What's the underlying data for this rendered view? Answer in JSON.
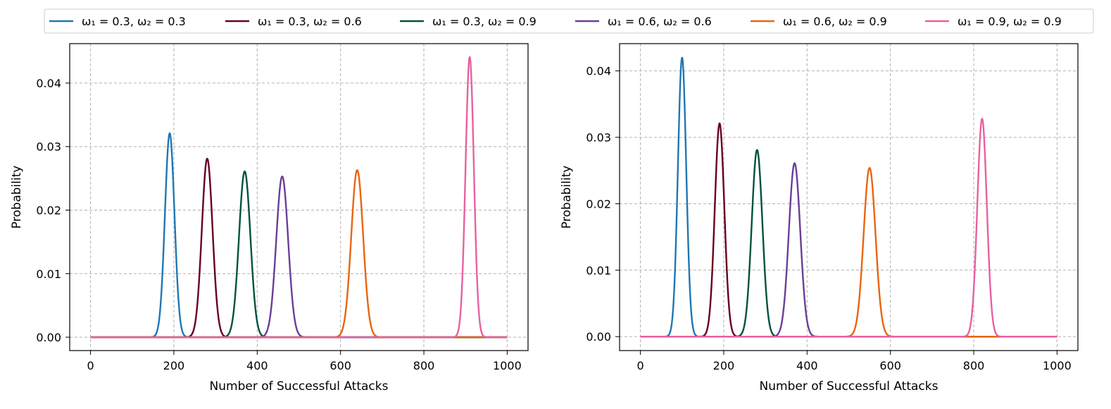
{
  "chart_data": {
    "type": "line",
    "legend": {
      "placement": "top-center",
      "entries": [
        {
          "label": "ω₁ = 0.3, ω₂ = 0.3",
          "color": "#1f77b4"
        },
        {
          "label": "ω₁ = 0.3, ω₂ = 0.6",
          "color": "#67001f"
        },
        {
          "label": "ω₁ = 0.3, ω₂ = 0.9",
          "color": "#00523f"
        },
        {
          "label": "ω₁ = 0.6, ω₂ = 0.6",
          "color": "#6a3d9a"
        },
        {
          "label": "ω₁ = 0.6, ω₂ = 0.9",
          "color": "#e8650f"
        },
        {
          "label": "ω₁ = 0.9, ω₂ = 0.9",
          "color": "#e7619f"
        }
      ]
    },
    "panels": [
      {
        "xlabel": "Number of Successful Attacks",
        "ylabel": "Probability",
        "xlim": [
          -50,
          1050
        ],
        "ylim": [
          -0.0021,
          0.0462
        ],
        "xticks": [
          0,
          200,
          400,
          600,
          800,
          1000
        ],
        "xtick_labels": [
          "0",
          "200",
          "400",
          "600",
          "800",
          "1000"
        ],
        "yticks": [
          0,
          0.01,
          0.02,
          0.03,
          0.04
        ],
        "ytick_labels": [
          "0.00",
          "0.01",
          "0.02",
          "0.03",
          "0.04"
        ],
        "grid": true,
        "series": [
          {
            "name": "ω₁ = 0.3, ω₂ = 0.3",
            "color": "#1f77b4",
            "peak_x": 190,
            "peak_y": 0.0321,
            "support": [
              150,
              230
            ]
          },
          {
            "name": "ω₁ = 0.3, ω₂ = 0.6",
            "color": "#67001f",
            "peak_x": 280,
            "peak_y": 0.0281,
            "support": [
              235,
              325
            ]
          },
          {
            "name": "ω₁ = 0.3, ω₂ = 0.9",
            "color": "#00523f",
            "peak_x": 370,
            "peak_y": 0.0261,
            "support": [
              322,
              418
            ]
          },
          {
            "name": "ω₁ = 0.6, ω₂ = 0.6",
            "color": "#6a3d9a",
            "peak_x": 460,
            "peak_y": 0.0253,
            "support": [
              410,
              510
            ]
          },
          {
            "name": "ω₁ = 0.6, ω₂ = 0.9",
            "color": "#e8650f",
            "peak_x": 640,
            "peak_y": 0.0263,
            "support": [
              590,
              690
            ]
          },
          {
            "name": "ω₁ = 0.9, ω₂ = 0.9",
            "color": "#e7619f",
            "peak_x": 910,
            "peak_y": 0.0441,
            "support": [
              875,
              945
            ]
          }
        ]
      },
      {
        "xlabel": "Number of Successful Attacks",
        "ylabel": "Probability",
        "xlim": [
          -50,
          1050
        ],
        "ylim": [
          -0.0021,
          0.0441
        ],
        "xticks": [
          0,
          200,
          400,
          600,
          800,
          1000
        ],
        "xtick_labels": [
          "0",
          "200",
          "400",
          "600",
          "800",
          "1000"
        ],
        "yticks": [
          0,
          0.01,
          0.02,
          0.03,
          0.04
        ],
        "ytick_labels": [
          "0.00",
          "0.01",
          "0.02",
          "0.03",
          "0.04"
        ],
        "grid": true,
        "series": [
          {
            "name": "ω₁ = 0.3, ω₂ = 0.3",
            "color": "#1f77b4",
            "peak_x": 100,
            "peak_y": 0.042,
            "support": [
              65,
              135
            ]
          },
          {
            "name": "ω₁ = 0.3, ω₂ = 0.6",
            "color": "#67001f",
            "peak_x": 190,
            "peak_y": 0.0321,
            "support": [
              150,
              230
            ]
          },
          {
            "name": "ω₁ = 0.3, ω₂ = 0.9",
            "color": "#00523f",
            "peak_x": 280,
            "peak_y": 0.0281,
            "support": [
              235,
              325
            ]
          },
          {
            "name": "ω₁ = 0.6, ω₂ = 0.6",
            "color": "#6a3d9a",
            "peak_x": 370,
            "peak_y": 0.0261,
            "support": [
              322,
              418
            ]
          },
          {
            "name": "ω₁ = 0.6, ω₂ = 0.9",
            "color": "#e8650f",
            "peak_x": 550,
            "peak_y": 0.0254,
            "support": [
              500,
              600
            ]
          },
          {
            "name": "ω₁ = 0.9, ω₂ = 0.9",
            "color": "#e7619f",
            "peak_x": 820,
            "peak_y": 0.0328,
            "support": [
              780,
              860
            ]
          }
        ]
      }
    ]
  }
}
